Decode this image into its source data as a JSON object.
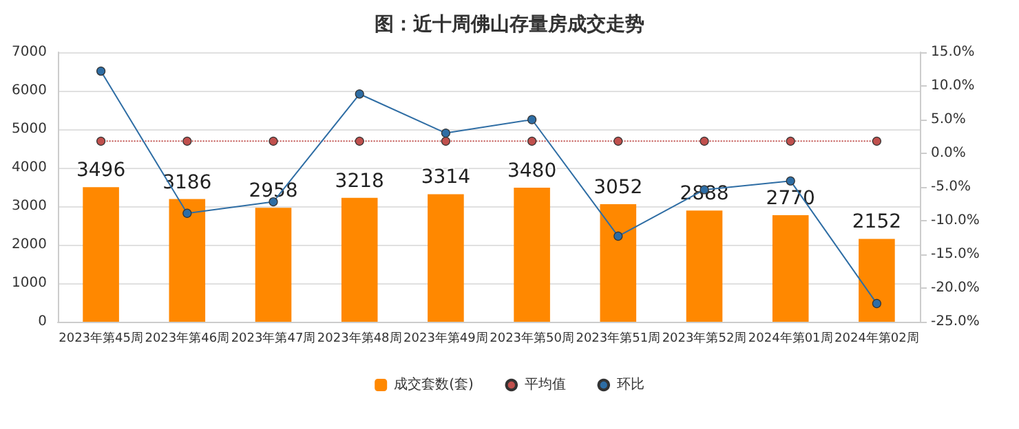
{
  "chart_data": {
    "type": "bar",
    "title": "图：近十周佛山存量房成交走势",
    "categories": [
      "2023年第45周",
      "2023年第46周",
      "2023年第47周",
      "2023年第48周",
      "2023年第49周",
      "2023年第50周",
      "2023年第51周",
      "2023年第52周",
      "2024年第01周",
      "2024年第02周"
    ],
    "series": [
      {
        "name": "成交套数(套)",
        "color": "#ff8800",
        "values": [
          3496,
          3186,
          2958,
          3218,
          3314,
          3480,
          3052,
          2888,
          2770,
          2152
        ],
        "value_labels": [
          "3496",
          "3186",
          "2958",
          "3218",
          "3314",
          "3480",
          "3052",
          "2888",
          "2770",
          "2152"
        ]
      },
      {
        "name": "平均值",
        "type": "line",
        "axis": "y2",
        "color": "#c0504d",
        "line_style": "dotted",
        "marker": "circle",
        "values": [
          1.8,
          1.8,
          1.8,
          1.8,
          1.8,
          1.8,
          1.8,
          1.8,
          1.8,
          1.8
        ]
      },
      {
        "name": "环比",
        "type": "line",
        "axis": "y2",
        "color": "#2e6da4",
        "line_style": "solid",
        "marker": "circle",
        "values": [
          12.2,
          -8.9,
          -7.2,
          8.8,
          3.0,
          5.0,
          -12.3,
          -5.4,
          -4.1,
          -22.3
        ]
      }
    ],
    "ylim": [
      0,
      7000
    ],
    "yticks": [
      0,
      1000,
      2000,
      3000,
      4000,
      5000,
      6000,
      7000
    ],
    "y2lim": [
      -25,
      15
    ],
    "y2ticks": [
      {
        "value": -25,
        "label": "-25.0%"
      },
      {
        "value": -20,
        "label": "-20.0%"
      },
      {
        "value": -15,
        "label": "-15.0%"
      },
      {
        "value": -10,
        "label": "-10.0%"
      },
      {
        "value": -5,
        "label": "-5.0%"
      },
      {
        "value": 0,
        "label": "0.0%"
      },
      {
        "value": 5,
        "label": "5.0%"
      },
      {
        "value": 10,
        "label": "10.0%"
      },
      {
        "value": 15,
        "label": "15.0%"
      }
    ],
    "grid": "y",
    "legend": "bottom"
  }
}
